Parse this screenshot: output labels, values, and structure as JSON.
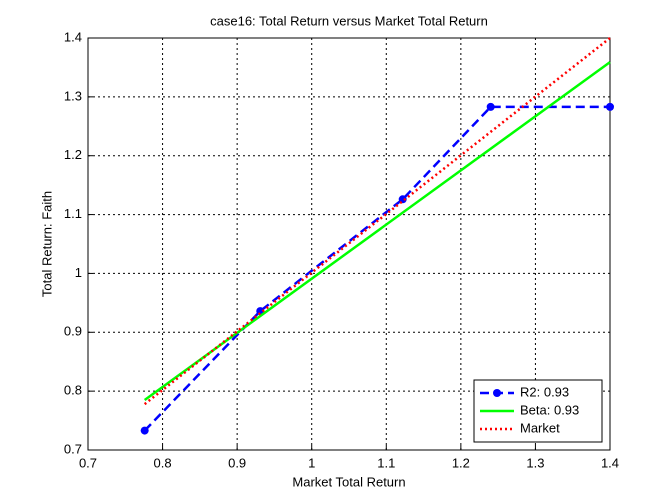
{
  "chart_data": {
    "type": "line",
    "title": "case16: Total Return versus Market Total Return",
    "x_label": "Market Total Return",
    "y_label": "Total Return: Faith",
    "xlim": [
      0.7,
      1.4
    ],
    "xticks": [
      0.7,
      0.8,
      0.9,
      1,
      1.1,
      1.2,
      1.3,
      1.4
    ],
    "ylim": [
      0.7,
      1.4
    ],
    "yticks": [
      0.7,
      0.8,
      0.9,
      1,
      1.1,
      1.2,
      1.3,
      1.4
    ],
    "grid": true,
    "legend": "lower right",
    "series": [
      {
        "name": "R2: 0.93",
        "color": "#0000ff",
        "linestyle": "dashed",
        "marker": "circle",
        "x": [
          0.776,
          0.931,
          1.122,
          1.24,
          1.4
        ],
        "values": [
          0.733,
          0.936,
          1.126,
          1.283,
          1.283
        ]
      },
      {
        "name": "Beta: 0.93",
        "color": "#00ff00",
        "linestyle": "solid",
        "marker": "none",
        "x": [
          0.776,
          1.4
        ],
        "values": [
          0.785,
          1.359
        ]
      },
      {
        "name": "Market",
        "color": "#ff0000",
        "linestyle": "dotted",
        "marker": "none",
        "x": [
          0.776,
          1.4
        ],
        "values": [
          0.778,
          1.4
        ]
      }
    ]
  }
}
